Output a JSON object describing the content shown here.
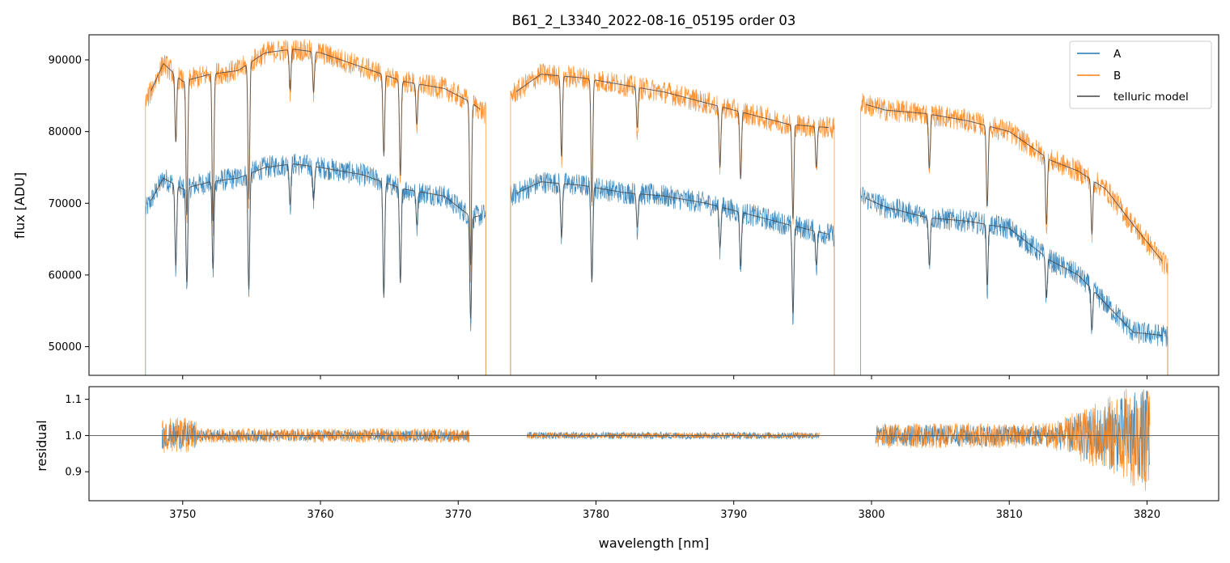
{
  "chart_data": [
    {
      "type": "line",
      "panel": "top",
      "title": "B61_2_L3340_2022-08-16_05195  order 03",
      "xlabel": "",
      "ylabel": "flux [ADU]",
      "xlim": [
        3743.2,
        3825.2
      ],
      "ylim": [
        46000,
        93500
      ],
      "yticks": [
        50000,
        60000,
        70000,
        80000,
        90000
      ],
      "ytick_labels": [
        "50000",
        "60000",
        "70000",
        "80000",
        "90000"
      ],
      "xticks": [
        3750,
        3760,
        3770,
        3780,
        3790,
        3800,
        3810,
        3820
      ],
      "grid": false,
      "legend": {
        "placement": "top-right",
        "entries": [
          "A",
          "B",
          "telluric model"
        ]
      },
      "series": [
        {
          "name": "A",
          "color": "#1f77b4",
          "segments": [
            {
              "x": [
                3747.3,
                3748.6,
                3750.0,
                3752.0,
                3754.0,
                3756.0,
                3758.0,
                3760.0,
                3763.0,
                3766.0,
                3769.0,
                3771.0,
                3772.0
              ],
              "y": [
                69000,
                73500,
                72000,
                73000,
                73500,
                75000,
                75500,
                75000,
                74000,
                72000,
                71000,
                68000,
                68500
              ]
            },
            {
              "x": [
                3773.8,
                3776.0,
                3779.0,
                3782.0,
                3785.0,
                3788.0,
                3791.0,
                3794.0,
                3797.3
              ],
              "y": [
                71000,
                73000,
                72500,
                71500,
                71000,
                70000,
                68500,
                67000,
                65500
              ]
            },
            {
              "x": [
                3799.2,
                3801.0,
                3804.0,
                3807.0,
                3810.0,
                3813.0,
                3815.0,
                3817.0,
                3819.0,
                3821.5
              ],
              "y": [
                71000,
                69500,
                68000,
                67500,
                66500,
                62000,
                60000,
                56000,
                52000,
                51500
              ]
            }
          ],
          "absorption_lines": [
            {
              "x": 3749.5,
              "depth": 12000
            },
            {
              "x": 3750.3,
              "depth": 14000
            },
            {
              "x": 3752.2,
              "depth": 13000
            },
            {
              "x": 3754.8,
              "depth": 17000
            },
            {
              "x": 3757.8,
              "depth": 6000
            },
            {
              "x": 3759.5,
              "depth": 5000
            },
            {
              "x": 3764.6,
              "depth": 17000
            },
            {
              "x": 3765.8,
              "depth": 14000
            },
            {
              "x": 3767.0,
              "depth": 5000
            },
            {
              "x": 3770.9,
              "depth": 15000
            },
            {
              "x": 3777.5,
              "depth": 8000
            },
            {
              "x": 3779.7,
              "depth": 14000
            },
            {
              "x": 3783.0,
              "depth": 5000
            },
            {
              "x": 3789.0,
              "depth": 6000
            },
            {
              "x": 3790.5,
              "depth": 8000
            },
            {
              "x": 3794.3,
              "depth": 13000
            },
            {
              "x": 3796.0,
              "depth": 5000
            },
            {
              "x": 3804.2,
              "depth": 7000
            },
            {
              "x": 3808.4,
              "depth": 9000
            },
            {
              "x": 3812.7,
              "depth": 6000
            },
            {
              "x": 3816.0,
              "depth": 6000
            }
          ]
        },
        {
          "name": "B",
          "color": "#ff7f0e",
          "segments": [
            {
              "x": [
                3747.3,
                3748.6,
                3750.0,
                3752.0,
                3754.0,
                3756.0,
                3758.0,
                3760.0,
                3763.0,
                3766.0,
                3769.0,
                3771.0,
                3772.0
              ],
              "y": [
                84000,
                89500,
                87000,
                88000,
                88500,
                91000,
                91500,
                91000,
                89000,
                87000,
                86000,
                84000,
                82500
              ]
            },
            {
              "x": [
                3773.8,
                3776.0,
                3779.0,
                3782.0,
                3785.0,
                3788.0,
                3791.0,
                3794.0,
                3797.3
              ],
              "y": [
                85000,
                88000,
                87500,
                86500,
                85500,
                84000,
                82500,
                81000,
                80500
              ]
            },
            {
              "x": [
                3799.2,
                3801.0,
                3804.0,
                3807.0,
                3810.0,
                3813.0,
                3815.0,
                3817.0,
                3819.0,
                3821.5
              ],
              "y": [
                84000,
                83000,
                82500,
                81500,
                80000,
                76000,
                74500,
                72000,
                67000,
                61000
              ]
            }
          ],
          "absorption_lines": [
            {
              "x": 3749.5,
              "depth": 10000
            },
            {
              "x": 3750.3,
              "depth": 20000
            },
            {
              "x": 3752.2,
              "depth": 22000
            },
            {
              "x": 3754.8,
              "depth": 20000
            },
            {
              "x": 3757.8,
              "depth": 6000
            },
            {
              "x": 3759.5,
              "depth": 6000
            },
            {
              "x": 3764.6,
              "depth": 12000
            },
            {
              "x": 3765.8,
              "depth": 14000
            },
            {
              "x": 3767.0,
              "depth": 6000
            },
            {
              "x": 3770.9,
              "depth": 24000
            },
            {
              "x": 3777.5,
              "depth": 12000
            },
            {
              "x": 3779.7,
              "depth": 18000
            },
            {
              "x": 3783.0,
              "depth": 6000
            },
            {
              "x": 3789.0,
              "depth": 9000
            },
            {
              "x": 3790.5,
              "depth": 10000
            },
            {
              "x": 3794.3,
              "depth": 14000
            },
            {
              "x": 3796.0,
              "depth": 6000
            },
            {
              "x": 3804.2,
              "depth": 8000
            },
            {
              "x": 3808.4,
              "depth": 12000
            },
            {
              "x": 3812.7,
              "depth": 10000
            },
            {
              "x": 3816.0,
              "depth": 8000
            }
          ]
        },
        {
          "name": "telluric model",
          "color": "#444444",
          "note_series_role": "smooth model over A and B"
        }
      ]
    },
    {
      "type": "line",
      "panel": "bottom",
      "title": "",
      "xlabel": "wavelength [nm]",
      "ylabel": "residual",
      "xlim": [
        3743.2,
        3825.2
      ],
      "ylim": [
        0.82,
        1.135
      ],
      "yticks": [
        0.9,
        1.0,
        1.1
      ],
      "ytick_labels": [
        "0.9",
        "1.0",
        "1.1"
      ],
      "xticks": [
        3750,
        3760,
        3770,
        3780,
        3790,
        3800,
        3810,
        3820
      ],
      "xtick_labels": [
        "3750",
        "3760",
        "3770",
        "3780",
        "3790",
        "3800",
        "3810",
        "3820"
      ],
      "hline": 1.0,
      "grid": false,
      "series": [
        {
          "name": "A",
          "color": "#1f77b4",
          "segments": [
            {
              "x": [
                3748.5,
                3770.8
              ],
              "scatter": 0.015
            },
            {
              "x": [
                3775.0,
                3796.2
              ],
              "scatter": 0.01
            },
            {
              "x": [
                3800.3,
                3820.2
              ],
              "scatter": 0.03
            }
          ]
        },
        {
          "name": "B",
          "color": "#ff7f0e",
          "segments": [
            {
              "x": [
                3748.5,
                3770.8
              ],
              "scatter": 0.02
            },
            {
              "x": [
                3775.0,
                3796.2
              ],
              "scatter": 0.008
            },
            {
              "x": [
                3800.3,
                3820.2
              ],
              "scatter": 0.035
            }
          ]
        }
      ]
    }
  ]
}
